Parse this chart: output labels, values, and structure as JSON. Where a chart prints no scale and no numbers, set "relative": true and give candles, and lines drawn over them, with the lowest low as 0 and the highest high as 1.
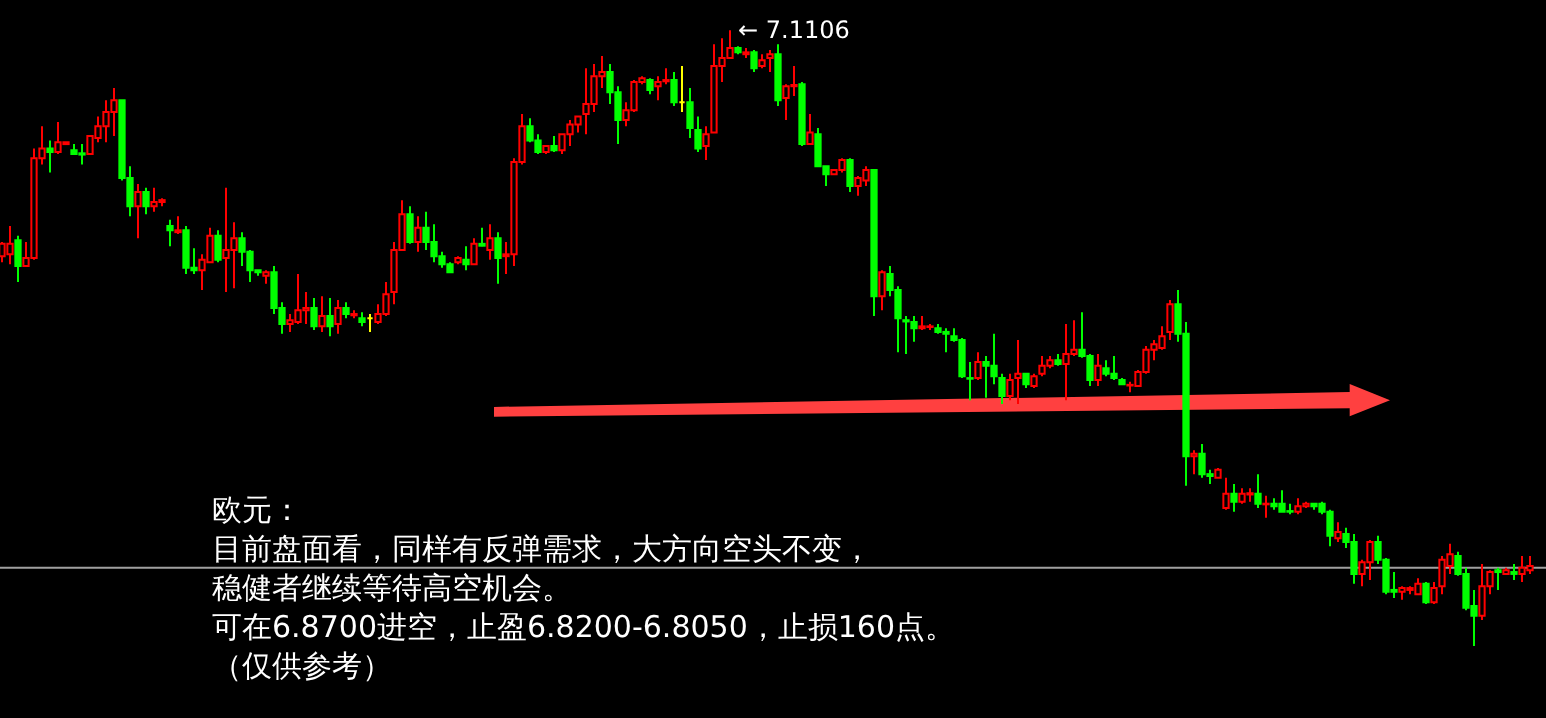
{
  "chart_data": {
    "type": "candlestick",
    "relative": true,
    "categories": [
      null,
      null,
      null,
      null,
      null,
      null,
      null,
      null,
      null,
      null,
      null,
      null,
      null,
      null,
      null,
      null,
      null,
      null,
      null,
      null,
      null,
      null,
      null,
      null,
      null,
      null,
      null,
      null,
      null,
      null,
      null,
      null,
      null,
      null,
      null,
      null,
      null,
      null,
      null,
      null,
      null,
      null,
      null,
      null,
      null,
      null,
      null,
      null,
      null,
      null,
      null,
      null,
      null,
      null,
      null,
      null,
      null,
      null,
      null,
      null,
      null,
      null,
      null,
      null,
      null,
      null,
      null,
      null,
      null,
      null,
      null,
      null,
      null,
      null,
      null,
      null,
      null,
      null,
      null,
      null,
      null,
      null,
      null,
      null,
      null,
      null,
      null,
      null,
      null,
      null,
      null,
      null,
      null,
      null,
      null,
      null,
      null,
      null,
      null,
      null,
      null,
      null,
      null,
      null,
      null,
      null,
      null,
      null,
      null,
      null,
      null,
      null,
      null,
      null,
      null,
      null,
      null,
      null,
      null,
      null,
      null,
      null,
      null,
      null,
      null,
      null,
      null,
      null,
      null,
      null,
      null,
      null,
      null,
      null,
      null,
      null,
      null,
      null,
      null,
      null,
      null,
      null,
      null,
      null,
      null,
      null,
      null,
      null,
      null,
      null,
      null,
      null,
      null,
      null,
      null,
      null,
      null,
      null,
      null,
      null,
      null,
      null,
      null,
      null,
      null,
      null,
      null,
      null,
      null,
      null,
      null,
      null,
      null,
      null,
      null,
      null,
      null,
      null,
      null,
      null,
      null,
      null,
      null,
      null,
      null,
      null,
      null,
      null,
      null,
      null,
      null,
      null
    ],
    "ohlc": [
      [
        0.633,
        0.656,
        0.623,
        0.653
      ],
      [
        0.636,
        0.682,
        0.62,
        0.653
      ],
      [
        0.659,
        0.666,
        0.591,
        0.617
      ],
      [
        0.617,
        0.656,
        0.617,
        0.63
      ],
      [
        0.63,
        0.808,
        0.627,
        0.792
      ],
      [
        0.792,
        0.844,
        0.782,
        0.808
      ],
      [
        0.808,
        0.821,
        0.769,
        0.802
      ],
      [
        0.802,
        0.851,
        0.799,
        0.818
      ],
      [
        0.815,
        0.818,
        0.815,
        0.818
      ],
      [
        0.805,
        0.815,
        0.799,
        0.799
      ],
      [
        0.8,
        0.815,
        0.782,
        0.798
      ],
      [
        0.799,
        0.828,
        0.799,
        0.828
      ],
      [
        0.825,
        0.86,
        0.818,
        0.844
      ],
      [
        0.844,
        0.886,
        0.818,
        0.867
      ],
      [
        0.867,
        0.906,
        0.828,
        0.886
      ],
      [
        0.886,
        0.886,
        0.756,
        0.76
      ],
      [
        0.76,
        0.779,
        0.698,
        0.714
      ],
      [
        0.714,
        0.75,
        0.662,
        0.737
      ],
      [
        0.737,
        0.744,
        0.701,
        0.714
      ],
      [
        0.714,
        0.744,
        0.705,
        0.721
      ],
      [
        0.721,
        0.727,
        0.714,
        0.724
      ],
      [
        0.682,
        0.692,
        0.649,
        0.675
      ],
      [
        0.672,
        0.698,
        0.669,
        0.675
      ],
      [
        0.675,
        0.682,
        0.604,
        0.614
      ],
      [
        0.614,
        0.646,
        0.604,
        0.61
      ],
      [
        0.61,
        0.636,
        0.578,
        0.627
      ],
      [
        0.623,
        0.679,
        0.623,
        0.666
      ],
      [
        0.666,
        0.675,
        0.623,
        0.627
      ],
      [
        0.63,
        0.744,
        0.575,
        0.643
      ],
      [
        0.643,
        0.688,
        0.581,
        0.662
      ],
      [
        0.662,
        0.672,
        0.617,
        0.64
      ],
      [
        0.64,
        0.643,
        0.591,
        0.61
      ],
      [
        0.61,
        0.61,
        0.601,
        0.607
      ],
      [
        0.601,
        0.61,
        0.588,
        0.607
      ],
      [
        0.607,
        0.617,
        0.539,
        0.549
      ],
      [
        0.549,
        0.558,
        0.507,
        0.523
      ],
      [
        0.523,
        0.539,
        0.51,
        0.529
      ],
      [
        0.526,
        0.604,
        0.523,
        0.545
      ],
      [
        0.545,
        0.575,
        0.523,
        0.549
      ],
      [
        0.549,
        0.565,
        0.513,
        0.519
      ],
      [
        0.519,
        0.568,
        0.51,
        0.536
      ],
      [
        0.536,
        0.565,
        0.503,
        0.519
      ],
      [
        0.523,
        0.562,
        0.507,
        0.549
      ],
      [
        0.549,
        0.558,
        0.532,
        0.539
      ],
      [
        0.537,
        0.545,
        0.532,
        0.539
      ],
      [
        0.532,
        0.542,
        0.519,
        0.526
      ],
      [
        0.532,
        0.539,
        0.51,
        0.532
      ],
      [
        0.526,
        0.555,
        0.523,
        0.539
      ],
      [
        0.539,
        0.591,
        0.536,
        0.571
      ],
      [
        0.575,
        0.656,
        0.555,
        0.643
      ],
      [
        0.643,
        0.724,
        0.643,
        0.701
      ],
      [
        0.701,
        0.714,
        0.653,
        0.656
      ],
      [
        0.656,
        0.698,
        0.64,
        0.679
      ],
      [
        0.679,
        0.705,
        0.643,
        0.656
      ],
      [
        0.656,
        0.685,
        0.623,
        0.633
      ],
      [
        0.633,
        0.64,
        0.614,
        0.62
      ],
      [
        0.62,
        0.623,
        0.607,
        0.607
      ],
      [
        0.623,
        0.633,
        0.62,
        0.63
      ],
      [
        0.627,
        0.649,
        0.61,
        0.62
      ],
      [
        0.62,
        0.662,
        0.62,
        0.653
      ],
      [
        0.653,
        0.679,
        0.649,
        0.65
      ],
      [
        0.643,
        0.685,
        0.627,
        0.662
      ],
      [
        0.662,
        0.672,
        0.588,
        0.63
      ],
      [
        0.633,
        0.656,
        0.604,
        0.636
      ],
      [
        0.636,
        0.792,
        0.617,
        0.786
      ],
      [
        0.786,
        0.864,
        0.782,
        0.844
      ],
      [
        0.844,
        0.857,
        0.818,
        0.821
      ],
      [
        0.821,
        0.831,
        0.799,
        0.802
      ],
      [
        0.802,
        0.812,
        0.799,
        0.812
      ],
      [
        0.812,
        0.828,
        0.802,
        0.805
      ],
      [
        0.805,
        0.831,
        0.799,
        0.831
      ],
      [
        0.831,
        0.854,
        0.812,
        0.847
      ],
      [
        0.847,
        0.86,
        0.834,
        0.86
      ],
      [
        0.864,
        0.938,
        0.831,
        0.88
      ],
      [
        0.88,
        0.945,
        0.867,
        0.925
      ],
      [
        0.925,
        0.958,
        0.906,
        0.932
      ],
      [
        0.932,
        0.945,
        0.88,
        0.899
      ],
      [
        0.899,
        0.909,
        0.815,
        0.854
      ],
      [
        0.854,
        0.883,
        0.844,
        0.87
      ],
      [
        0.87,
        0.919,
        0.867,
        0.916
      ],
      [
        0.916,
        0.925,
        0.912,
        0.922
      ],
      [
        0.919,
        0.922,
        0.896,
        0.903
      ],
      [
        0.909,
        0.925,
        0.886,
        0.916
      ],
      [
        0.917,
        0.938,
        0.912,
        0.919
      ],
      [
        0.919,
        0.932,
        0.877,
        0.883
      ],
      [
        0.883,
        0.942,
        0.867,
        0.883
      ],
      [
        0.883,
        0.906,
        0.825,
        0.841
      ],
      [
        0.838,
        0.86,
        0.802,
        0.808
      ],
      [
        0.812,
        0.844,
        0.789,
        0.831
      ],
      [
        0.834,
        0.977,
        0.834,
        0.942
      ],
      [
        0.942,
        0.987,
        0.916,
        0.955
      ],
      [
        0.955,
        1.0,
        0.955,
        0.971
      ],
      [
        0.971,
        0.974,
        0.961,
        0.964
      ],
      [
        0.961,
        0.971,
        0.955,
        0.964
      ],
      [
        0.964,
        0.968,
        0.932,
        0.938
      ],
      [
        0.942,
        0.961,
        0.938,
        0.951
      ],
      [
        0.955,
        0.968,
        0.932,
        0.961
      ],
      [
        0.961,
        0.977,
        0.877,
        0.886
      ],
      [
        0.89,
        0.912,
        0.854,
        0.909
      ],
      [
        0.909,
        0.942,
        0.893,
        0.911
      ],
      [
        0.912,
        0.916,
        0.812,
        0.815
      ],
      [
        0.815,
        0.864,
        0.815,
        0.834
      ],
      [
        0.831,
        0.841,
        0.779,
        0.779
      ],
      [
        0.779,
        0.779,
        0.747,
        0.766
      ],
      [
        0.766,
        0.773,
        0.766,
        0.773
      ],
      [
        0.773,
        0.792,
        0.769,
        0.789
      ],
      [
        0.789,
        0.792,
        0.737,
        0.747
      ],
      [
        0.747,
        0.763,
        0.731,
        0.76
      ],
      [
        0.756,
        0.779,
        0.747,
        0.773
      ],
      [
        0.773,
        0.773,
        0.536,
        0.568
      ],
      [
        0.568,
        0.61,
        0.545,
        0.607
      ],
      [
        0.604,
        0.617,
        0.568,
        0.578
      ],
      [
        0.578,
        0.584,
        0.477,
        0.532
      ],
      [
        0.529,
        0.536,
        0.474,
        0.527
      ],
      [
        0.526,
        0.536,
        0.494,
        0.516
      ],
      [
        0.516,
        0.536,
        0.513,
        0.519
      ],
      [
        0.518,
        0.523,
        0.513,
        0.519
      ],
      [
        0.516,
        0.523,
        0.507,
        0.51
      ],
      [
        0.51,
        0.516,
        0.477,
        0.507
      ],
      [
        0.503,
        0.516,
        0.494,
        0.497
      ],
      [
        0.497,
        0.5,
        0.435,
        0.438
      ],
      [
        0.435,
        0.461,
        0.399,
        0.434
      ],
      [
        0.435,
        0.477,
        0.432,
        0.461
      ],
      [
        0.461,
        0.471,
        0.403,
        0.455
      ],
      [
        0.455,
        0.507,
        0.425,
        0.438
      ],
      [
        0.435,
        0.442,
        0.393,
        0.406
      ],
      [
        0.406,
        0.442,
        0.399,
        0.432
      ],
      [
        0.435,
        0.497,
        0.393,
        0.442
      ],
      [
        0.442,
        0.442,
        0.419,
        0.425
      ],
      [
        0.422,
        0.442,
        0.419,
        0.438
      ],
      [
        0.442,
        0.471,
        0.438,
        0.455
      ],
      [
        0.455,
        0.471,
        0.451,
        0.464
      ],
      [
        0.464,
        0.474,
        0.455,
        0.458
      ],
      [
        0.458,
        0.523,
        0.399,
        0.474
      ],
      [
        0.474,
        0.529,
        0.471,
        0.481
      ],
      [
        0.481,
        0.542,
        0.468,
        0.471
      ],
      [
        0.471,
        0.474,
        0.422,
        0.432
      ],
      [
        0.432,
        0.474,
        0.422,
        0.455
      ],
      [
        0.451,
        0.464,
        0.438,
        0.442
      ],
      [
        0.442,
        0.471,
        0.432,
        0.435
      ],
      [
        0.432,
        0.435,
        0.425,
        0.425
      ],
      [
        0.423,
        0.429,
        0.412,
        0.424
      ],
      [
        0.422,
        0.448,
        0.422,
        0.445
      ],
      [
        0.445,
        0.487,
        0.442,
        0.481
      ],
      [
        0.481,
        0.497,
        0.464,
        0.49
      ],
      [
        0.484,
        0.519,
        0.481,
        0.503
      ],
      [
        0.51,
        0.562,
        0.497,
        0.555
      ],
      [
        0.555,
        0.578,
        0.494,
        0.507
      ],
      [
        0.507,
        0.526,
        0.26,
        0.308
      ],
      [
        0.308,
        0.318,
        0.279,
        0.312
      ],
      [
        0.312,
        0.328,
        0.273,
        0.279
      ],
      [
        0.279,
        0.286,
        0.263,
        0.276
      ],
      [
        0.273,
        0.289,
        0.273,
        0.286
      ],
      [
        0.224,
        0.273,
        0.221,
        0.247
      ],
      [
        0.247,
        0.263,
        0.218,
        0.234
      ],
      [
        0.234,
        0.256,
        0.231,
        0.247
      ],
      [
        0.246,
        0.256,
        0.234,
        0.248
      ],
      [
        0.247,
        0.279,
        0.224,
        0.231
      ],
      [
        0.23,
        0.244,
        0.208,
        0.231
      ],
      [
        0.231,
        0.24,
        0.221,
        0.227
      ],
      [
        0.231,
        0.253,
        0.218,
        0.218
      ],
      [
        0.219,
        0.231,
        0.214,
        0.218
      ],
      [
        0.218,
        0.24,
        0.214,
        0.227
      ],
      [
        0.227,
        0.234,
        0.224,
        0.231
      ],
      [
        0.231,
        0.231,
        0.221,
        0.227
      ],
      [
        0.231,
        0.234,
        0.214,
        0.218
      ],
      [
        0.218,
        0.221,
        0.162,
        0.179
      ],
      [
        0.175,
        0.201,
        0.169,
        0.185
      ],
      [
        0.182,
        0.192,
        0.159,
        0.169
      ],
      [
        0.169,
        0.182,
        0.101,
        0.117
      ],
      [
        0.117,
        0.14,
        0.097,
        0.136
      ],
      [
        0.136,
        0.172,
        0.107,
        0.169
      ],
      [
        0.169,
        0.179,
        0.133,
        0.14
      ],
      [
        0.14,
        0.143,
        0.084,
        0.088
      ],
      [
        0.091,
        0.12,
        0.078,
        0.088
      ],
      [
        0.088,
        0.097,
        0.075,
        0.094
      ],
      [
        0.091,
        0.097,
        0.084,
        0.094
      ],
      [
        0.084,
        0.11,
        0.084,
        0.101
      ],
      [
        0.101,
        0.104,
        0.068,
        0.071
      ],
      [
        0.071,
        0.104,
        0.068,
        0.094
      ],
      [
        0.097,
        0.146,
        0.084,
        0.14
      ],
      [
        0.13,
        0.166,
        0.117,
        0.149
      ],
      [
        0.146,
        0.153,
        0.114,
        0.117
      ],
      [
        0.117,
        0.127,
        0.058,
        0.062
      ],
      [
        0.065,
        0.091,
        0.0,
        0.049
      ],
      [
        0.049,
        0.133,
        0.042,
        0.097
      ],
      [
        0.097,
        0.123,
        0.084,
        0.12
      ],
      [
        0.123,
        0.127,
        0.091,
        0.12
      ],
      [
        0.117,
        0.127,
        0.117,
        0.123
      ],
      [
        0.12,
        0.133,
        0.107,
        0.117
      ],
      [
        0.117,
        0.146,
        0.104,
        0.127
      ],
      [
        0.123,
        0.146,
        0.117,
        0.13
      ]
    ],
    "ref_lines": [
      {
        "axis": "y",
        "value": 0.127,
        "color": "#a0a0a0"
      }
    ],
    "annotations": [
      "← 7.1106",
      "欧元：",
      "目前盘面看，同样有反弹需求，大方向空头不变，",
      "稳健者继续等待高空机会。",
      "可在6.8700进空，止盈6.8200-6.8050，止损160点。",
      "（仅供参考）"
    ]
  }
}
